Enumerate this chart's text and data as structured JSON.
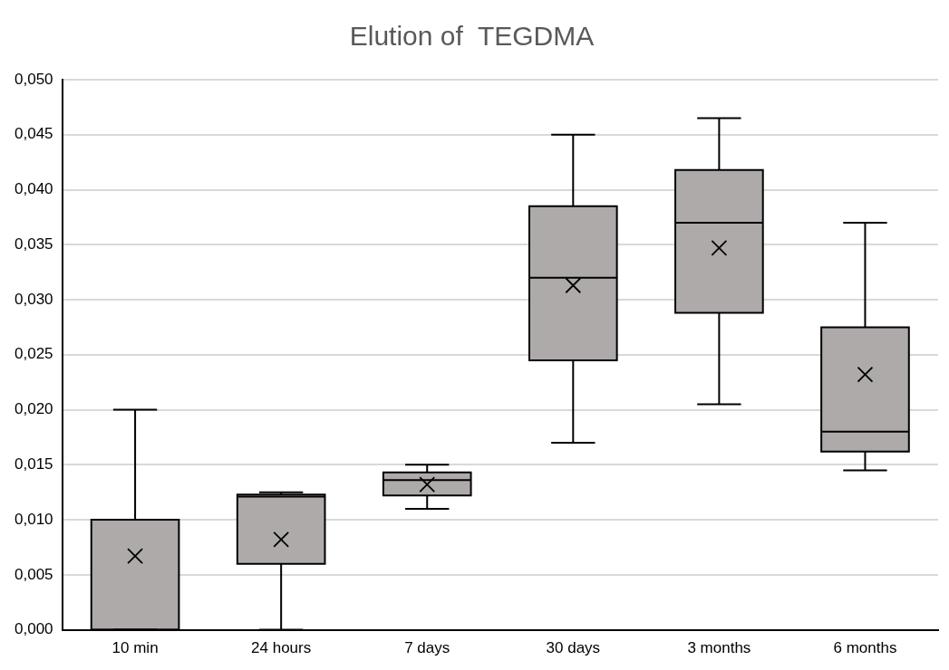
{
  "chart_data": {
    "type": "box",
    "title": "Elution of  TEGDMA",
    "categories": [
      "10 min",
      "24 hours",
      "7 days",
      "30 days",
      "3 months",
      "6 months"
    ],
    "color": "#aeaaaa",
    "boxes": [
      {
        "low": 0,
        "q1": 0,
        "median": 0,
        "q3": 0.01,
        "high": 0.02,
        "mean": 0.0067
      },
      {
        "low": 0,
        "q1": 0.006,
        "median": 0.0121,
        "q3": 0.0123,
        "high": 0.0125,
        "mean": 0.0082
      },
      {
        "low": 0.011,
        "q1": 0.0122,
        "median": 0.0136,
        "q3": 0.0143,
        "high": 0.015,
        "mean": 0.0132
      },
      {
        "low": 0.017,
        "q1": 0.0245,
        "median": 0.032,
        "q3": 0.0385,
        "high": 0.045,
        "mean": 0.0313
      },
      {
        "low": 0.0205,
        "q1": 0.0288,
        "median": 0.037,
        "q3": 0.0418,
        "high": 0.0465,
        "mean": 0.0347
      },
      {
        "low": 0.0145,
        "q1": 0.0162,
        "median": 0.018,
        "q3": 0.0275,
        "high": 0.037,
        "mean": 0.0232
      }
    ],
    "ylim": [
      0,
      0.05
    ],
    "yticks": [
      {
        "value": 0,
        "label": "0,000"
      },
      {
        "value": 0.005,
        "label": "0,005"
      },
      {
        "value": 0.01,
        "label": "0,010"
      },
      {
        "value": 0.015,
        "label": "0,015"
      },
      {
        "value": 0.02,
        "label": "0,020"
      },
      {
        "value": 0.025,
        "label": "0,025"
      },
      {
        "value": 0.03,
        "label": "0,030"
      },
      {
        "value": 0.035,
        "label": "0,035"
      },
      {
        "value": 0.04,
        "label": "0,040"
      },
      {
        "value": 0.045,
        "label": "0,045"
      },
      {
        "value": 0.05,
        "label": "0,050"
      }
    ],
    "grid": "y",
    "legend": false,
    "marker": "cross"
  }
}
